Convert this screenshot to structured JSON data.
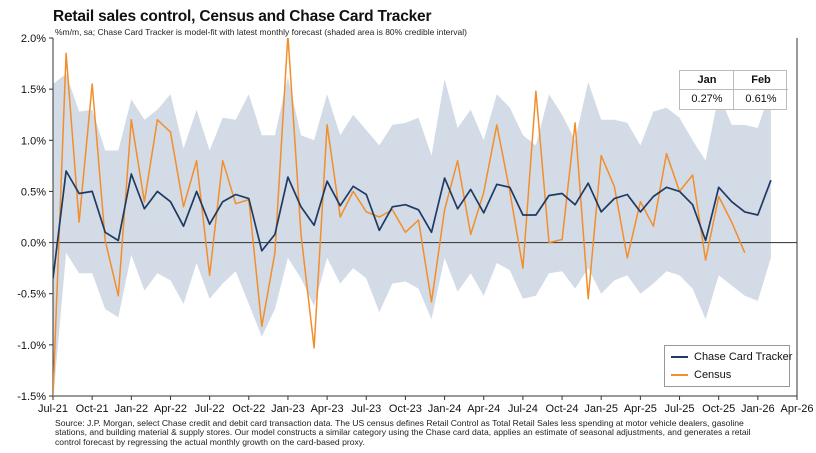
{
  "title": "Retail sales control, Census and Chase Card Tracker",
  "subtitle": "%m/m, sa; Chase Card Tracker is model-fit with latest monthly forecast (shaded area is 80% credible interval)",
  "source": "Source: J.P. Morgan, select Chase credit and debit card transaction data. The US census defines Retail Control as Total Retail Sales less spending at motor vehicle dealers, gasoline stations, and building material & supply stores. Our model constructs a similar category using the Chase card data, applies an estimate of seasonal adjustments, and generates a retail control forecast by regressing the actual monthly growth on the card-based proxy.",
  "forecast_table": {
    "headers": [
      "Jan",
      "Feb"
    ],
    "values": [
      "0.27%",
      "0.61%"
    ]
  },
  "colors": {
    "tracker": "#1f3b63",
    "census": "#f28e2b",
    "band": "#d3dbe6",
    "zero_line": "#444444"
  },
  "chart_data": {
    "type": "line",
    "title": "Retail sales control, Census and Chase Card Tracker",
    "ylabel": "%m/m, sa",
    "ylim": [
      -1.5,
      2.0
    ],
    "y_ticks": [
      2.0,
      1.5,
      1.0,
      0.5,
      0.0,
      -0.5,
      -1.0,
      -1.5
    ],
    "y_tick_labels": [
      "2.0%",
      "1.5%",
      "1.0%",
      "0.5%",
      "0.0%",
      "-0.5%",
      "-1.0%",
      "-1.5%"
    ],
    "x_ticks": [
      0,
      3,
      6,
      9,
      12,
      15,
      18,
      21,
      24,
      27,
      30,
      33,
      36,
      39,
      42,
      45,
      48,
      51,
      54,
      57
    ],
    "x_tick_labels": [
      "Jul-21",
      "Oct-21",
      "Jan-22",
      "Apr-22",
      "Jul-22",
      "Oct-22",
      "Jan-23",
      "Apr-23",
      "Jul-23",
      "Oct-23",
      "Jan-24",
      "Apr-24",
      "Jul-24",
      "Oct-24",
      "Jan-25",
      "Apr-25",
      "Jul-25",
      "Oct-25",
      "Jan-26",
      "Apr-26"
    ],
    "x_range": [
      0,
      57
    ],
    "legend": [
      "Chase Card Tracker",
      "Census"
    ],
    "legend_position": "bottom-right",
    "series": [
      {
        "name": "Chase Card Tracker",
        "x": [
          0,
          1,
          2,
          3,
          4,
          5,
          6,
          7,
          8,
          9,
          10,
          11,
          12,
          13,
          14,
          15,
          16,
          17,
          18,
          19,
          20,
          21,
          22,
          23,
          24,
          25,
          26,
          27,
          28,
          29,
          30,
          31,
          32,
          33,
          34,
          35,
          36,
          37,
          38,
          39,
          40,
          41,
          42,
          43,
          44,
          45,
          46,
          47,
          48,
          49,
          50,
          51,
          52,
          53,
          54,
          55
        ],
        "values": [
          -0.35,
          0.7,
          0.48,
          0.5,
          0.1,
          0.02,
          0.67,
          0.33,
          0.5,
          0.4,
          0.16,
          0.5,
          0.18,
          0.4,
          0.47,
          0.43,
          -0.08,
          0.08,
          0.64,
          0.35,
          0.17,
          0.6,
          0.36,
          0.55,
          0.47,
          0.12,
          0.35,
          0.37,
          0.32,
          0.1,
          0.63,
          0.33,
          0.52,
          0.29,
          0.57,
          0.54,
          0.27,
          0.27,
          0.46,
          0.48,
          0.37,
          0.58,
          0.3,
          0.43,
          0.47,
          0.3,
          0.45,
          0.54,
          0.5,
          0.37,
          0.02,
          0.54,
          0.4,
          0.3,
          0.27,
          0.61
        ]
      },
      {
        "name": "Census",
        "x": [
          0,
          1,
          2,
          3,
          4,
          5,
          6,
          7,
          8,
          9,
          10,
          11,
          12,
          13,
          14,
          15,
          16,
          17,
          18,
          19,
          20,
          21,
          22,
          23,
          24,
          25,
          26,
          27,
          28,
          29,
          30,
          31,
          32,
          33,
          34,
          35,
          36,
          37,
          38,
          39,
          40,
          41,
          42,
          43,
          44,
          45,
          46,
          47,
          48,
          49,
          50,
          51,
          52,
          53
        ],
        "values": [
          -1.5,
          1.85,
          0.2,
          1.55,
          0.02,
          -0.52,
          1.2,
          0.4,
          1.2,
          1.08,
          0.35,
          0.8,
          -0.32,
          0.8,
          0.38,
          0.42,
          -0.82,
          -0.1,
          2.03,
          0.08,
          -1.03,
          1.15,
          0.25,
          0.5,
          0.3,
          0.25,
          0.32,
          0.1,
          0.22,
          -0.58,
          0.32,
          0.8,
          0.08,
          0.49,
          1.15,
          0.5,
          -0.25,
          1.48,
          0.0,
          0.03,
          1.17,
          -0.55,
          0.85,
          0.55,
          -0.15,
          0.4,
          0.16,
          0.87,
          0.5,
          0.66,
          -0.17,
          0.45,
          0.2,
          -0.1
        ]
      },
      {
        "name": "80% credible interval",
        "x": [
          0,
          1,
          2,
          3,
          4,
          5,
          6,
          7,
          8,
          9,
          10,
          11,
          12,
          13,
          14,
          15,
          16,
          17,
          18,
          19,
          20,
          21,
          22,
          23,
          24,
          25,
          26,
          27,
          28,
          29,
          30,
          31,
          32,
          33,
          34,
          35,
          36,
          37,
          38,
          39,
          40,
          41,
          42,
          43,
          44,
          45,
          46,
          47,
          48,
          49,
          50,
          51,
          52,
          53,
          54,
          55
        ],
        "upper": [
          1.55,
          1.65,
          1.28,
          1.3,
          0.9,
          0.9,
          1.4,
          1.2,
          1.3,
          1.45,
          0.92,
          1.3,
          0.9,
          1.22,
          1.2,
          1.45,
          1.05,
          1.05,
          1.62,
          1.05,
          1.0,
          1.45,
          1.05,
          1.25,
          1.1,
          0.95,
          1.15,
          1.17,
          1.22,
          0.85,
          1.6,
          1.12,
          1.3,
          1.0,
          1.45,
          1.32,
          1.05,
          0.95,
          1.45,
          1.25,
          1.0,
          1.57,
          1.2,
          1.2,
          1.17,
          0.95,
          1.28,
          1.32,
          1.22,
          1.0,
          0.8,
          1.45,
          1.15,
          1.15,
          1.12,
          1.5
        ],
        "lower": [
          -1.55,
          -0.1,
          -0.3,
          -0.3,
          -0.65,
          -0.73,
          -0.12,
          -0.47,
          -0.3,
          -0.37,
          -0.6,
          -0.2,
          -0.55,
          -0.4,
          -0.28,
          -0.6,
          -0.92,
          -0.65,
          -0.15,
          -0.35,
          -0.62,
          -0.15,
          -0.4,
          -0.25,
          -0.35,
          -0.68,
          -0.4,
          -0.38,
          -0.45,
          -0.75,
          -0.15,
          -0.48,
          -0.3,
          -0.52,
          -0.2,
          -0.27,
          -0.55,
          -0.52,
          -0.3,
          -0.28,
          -0.45,
          -0.25,
          -0.5,
          -0.37,
          -0.32,
          -0.5,
          -0.4,
          -0.28,
          -0.32,
          -0.45,
          -0.75,
          -0.32,
          -0.42,
          -0.52,
          -0.57,
          -0.15
        ]
      }
    ]
  }
}
